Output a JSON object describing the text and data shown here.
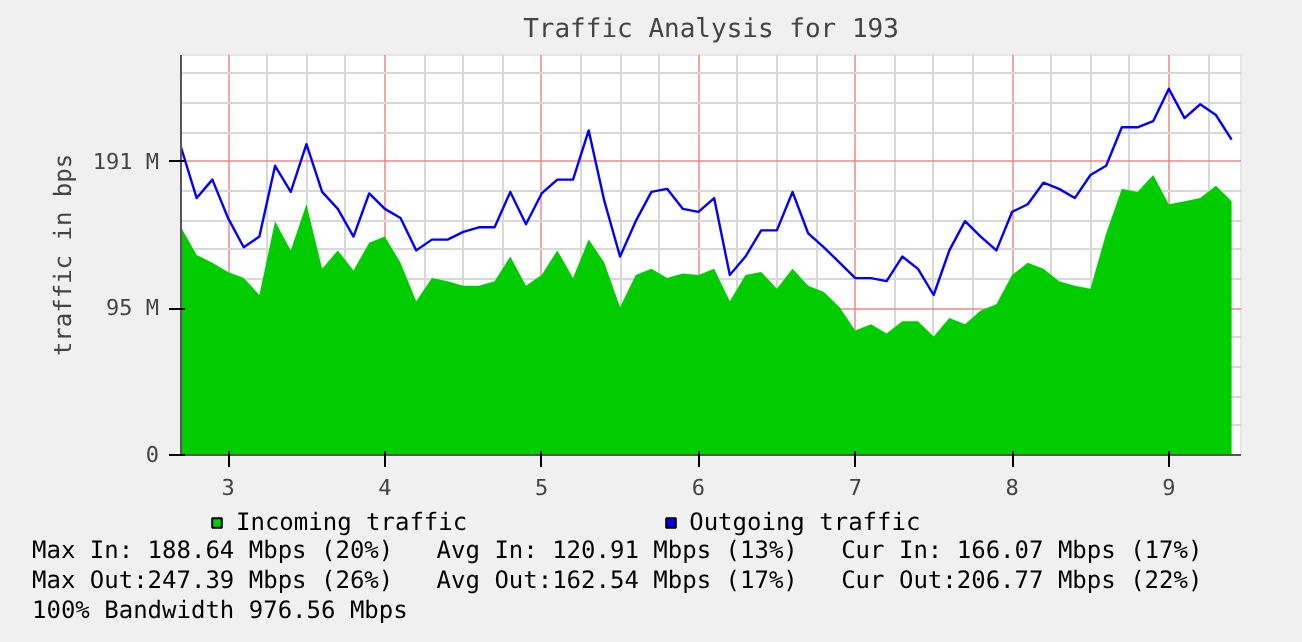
{
  "chart_data": {
    "type": "area",
    "title": "Traffic Analysis for 193",
    "ylabel": "traffic in bps",
    "x": [
      2.7,
      2.8,
      2.9,
      3.0,
      3.1,
      3.2,
      3.3,
      3.4,
      3.5,
      3.6,
      3.7,
      3.8,
      3.9,
      4.0,
      4.1,
      4.2,
      4.3,
      4.4,
      4.5,
      4.6,
      4.7,
      4.8,
      4.9,
      5.0,
      5.1,
      5.2,
      5.3,
      5.4,
      5.5,
      5.6,
      5.7,
      5.8,
      5.9,
      6.0,
      6.1,
      6.2,
      6.3,
      6.4,
      6.5,
      6.6,
      6.7,
      6.8,
      6.9,
      7.0,
      7.1,
      7.2,
      7.3,
      7.4,
      7.5,
      7.6,
      7.7,
      7.8,
      7.9,
      8.0,
      8.1,
      8.2,
      8.3,
      8.4,
      8.5,
      8.6,
      8.7,
      8.8,
      8.9,
      9.0,
      9.1,
      9.2,
      9.3,
      9.4
    ],
    "series": [
      {
        "name": "Incoming traffic",
        "type": "area",
        "color": "#00cc00",
        "values": [
          148,
          130,
          125,
          119,
          115,
          104,
          152,
          133,
          163,
          121,
          133,
          120,
          138,
          142,
          125,
          100,
          115,
          113,
          110,
          110,
          113,
          129,
          110,
          117,
          133,
          115,
          140,
          125,
          96,
          117,
          121,
          115,
          118,
          117,
          121,
          100,
          117,
          119,
          108,
          121,
          110,
          106,
          96,
          81,
          85,
          79,
          87,
          87,
          77,
          89,
          85,
          94,
          98,
          117,
          125,
          121,
          113,
          110,
          108,
          144,
          173,
          171,
          182,
          163,
          165,
          167,
          175,
          165
        ]
      },
      {
        "name": "Outgoing traffic",
        "type": "line",
        "color": "#0000ff",
        "values": [
          200,
          167,
          179,
          154,
          135,
          142,
          188,
          171,
          202,
          171,
          160,
          142,
          170,
          160,
          154,
          133,
          140,
          140,
          145,
          148,
          148,
          171,
          150,
          170,
          179,
          179,
          211,
          165,
          129,
          152,
          171,
          173,
          160,
          158,
          167,
          117,
          129,
          146,
          146,
          171,
          144,
          135,
          125,
          115,
          115,
          113,
          129,
          121,
          104,
          133,
          152,
          142,
          133,
          158,
          163,
          177,
          173,
          167,
          182,
          188,
          213,
          213,
          217,
          238,
          219,
          228,
          221,
          205
        ]
      }
    ],
    "xlim": [
      2.7,
      9.46
    ],
    "xticks": [
      3,
      {
        "value": 3.25,
        "label": null
      },
      {
        "value": 3.5,
        "label": null
      },
      {
        "value": 3.75,
        "label": null
      },
      4,
      {
        "value": 4.25,
        "label": null
      },
      {
        "value": 4.5,
        "label": null
      },
      {
        "value": 4.75,
        "label": null
      },
      5,
      {
        "value": 5.25,
        "label": null
      },
      {
        "value": 5.5,
        "label": null
      },
      {
        "value": 5.75,
        "label": null
      },
      6,
      {
        "value": 6.25,
        "label": null
      },
      {
        "value": 6.5,
        "label": null
      },
      {
        "value": 6.75,
        "label": null
      },
      7,
      {
        "value": 7.25,
        "label": null
      },
      {
        "value": 7.5,
        "label": null
      },
      {
        "value": 7.75,
        "label": null
      },
      8,
      {
        "value": 8.25,
        "label": null
      },
      {
        "value": 8.5,
        "label": null
      },
      {
        "value": 8.75,
        "label": null
      },
      9,
      {
        "value": 9.25,
        "label": null
      }
    ],
    "ylim": [
      0,
      260
    ],
    "yticks": [
      0,
      {
        "value": 19.07,
        "label": null
      },
      {
        "value": 38.15,
        "label": null
      },
      {
        "value": 57.22,
        "label": null
      },
      {
        "value": 76.29,
        "label": null
      },
      {
        "value": 95.37,
        "label": "95 M"
      },
      {
        "value": 114.44,
        "label": null
      },
      {
        "value": 133.51,
        "label": null
      },
      {
        "value": 152.59,
        "label": null
      },
      {
        "value": 171.66,
        "label": null
      },
      {
        "value": 190.73,
        "label": "191 M"
      },
      {
        "value": 209.8,
        "label": null
      },
      {
        "value": 228.88,
        "label": null
      },
      {
        "value": 247.95,
        "label": null
      }
    ],
    "grid": true,
    "legend": "bottom left",
    "annotations": [
      "Max In: 188.64 Mbps (20%)   Avg In: 120.91 Mbps (13%)   Cur In: 166.07 Mbps (17%)",
      "Max Out:247.39 Mbps (26%)   Avg Out:162.54 Mbps (17%)   Cur Out:206.77 Mbps (22%)",
      "100% Bandwidth 976.56 Mbps"
    ]
  }
}
